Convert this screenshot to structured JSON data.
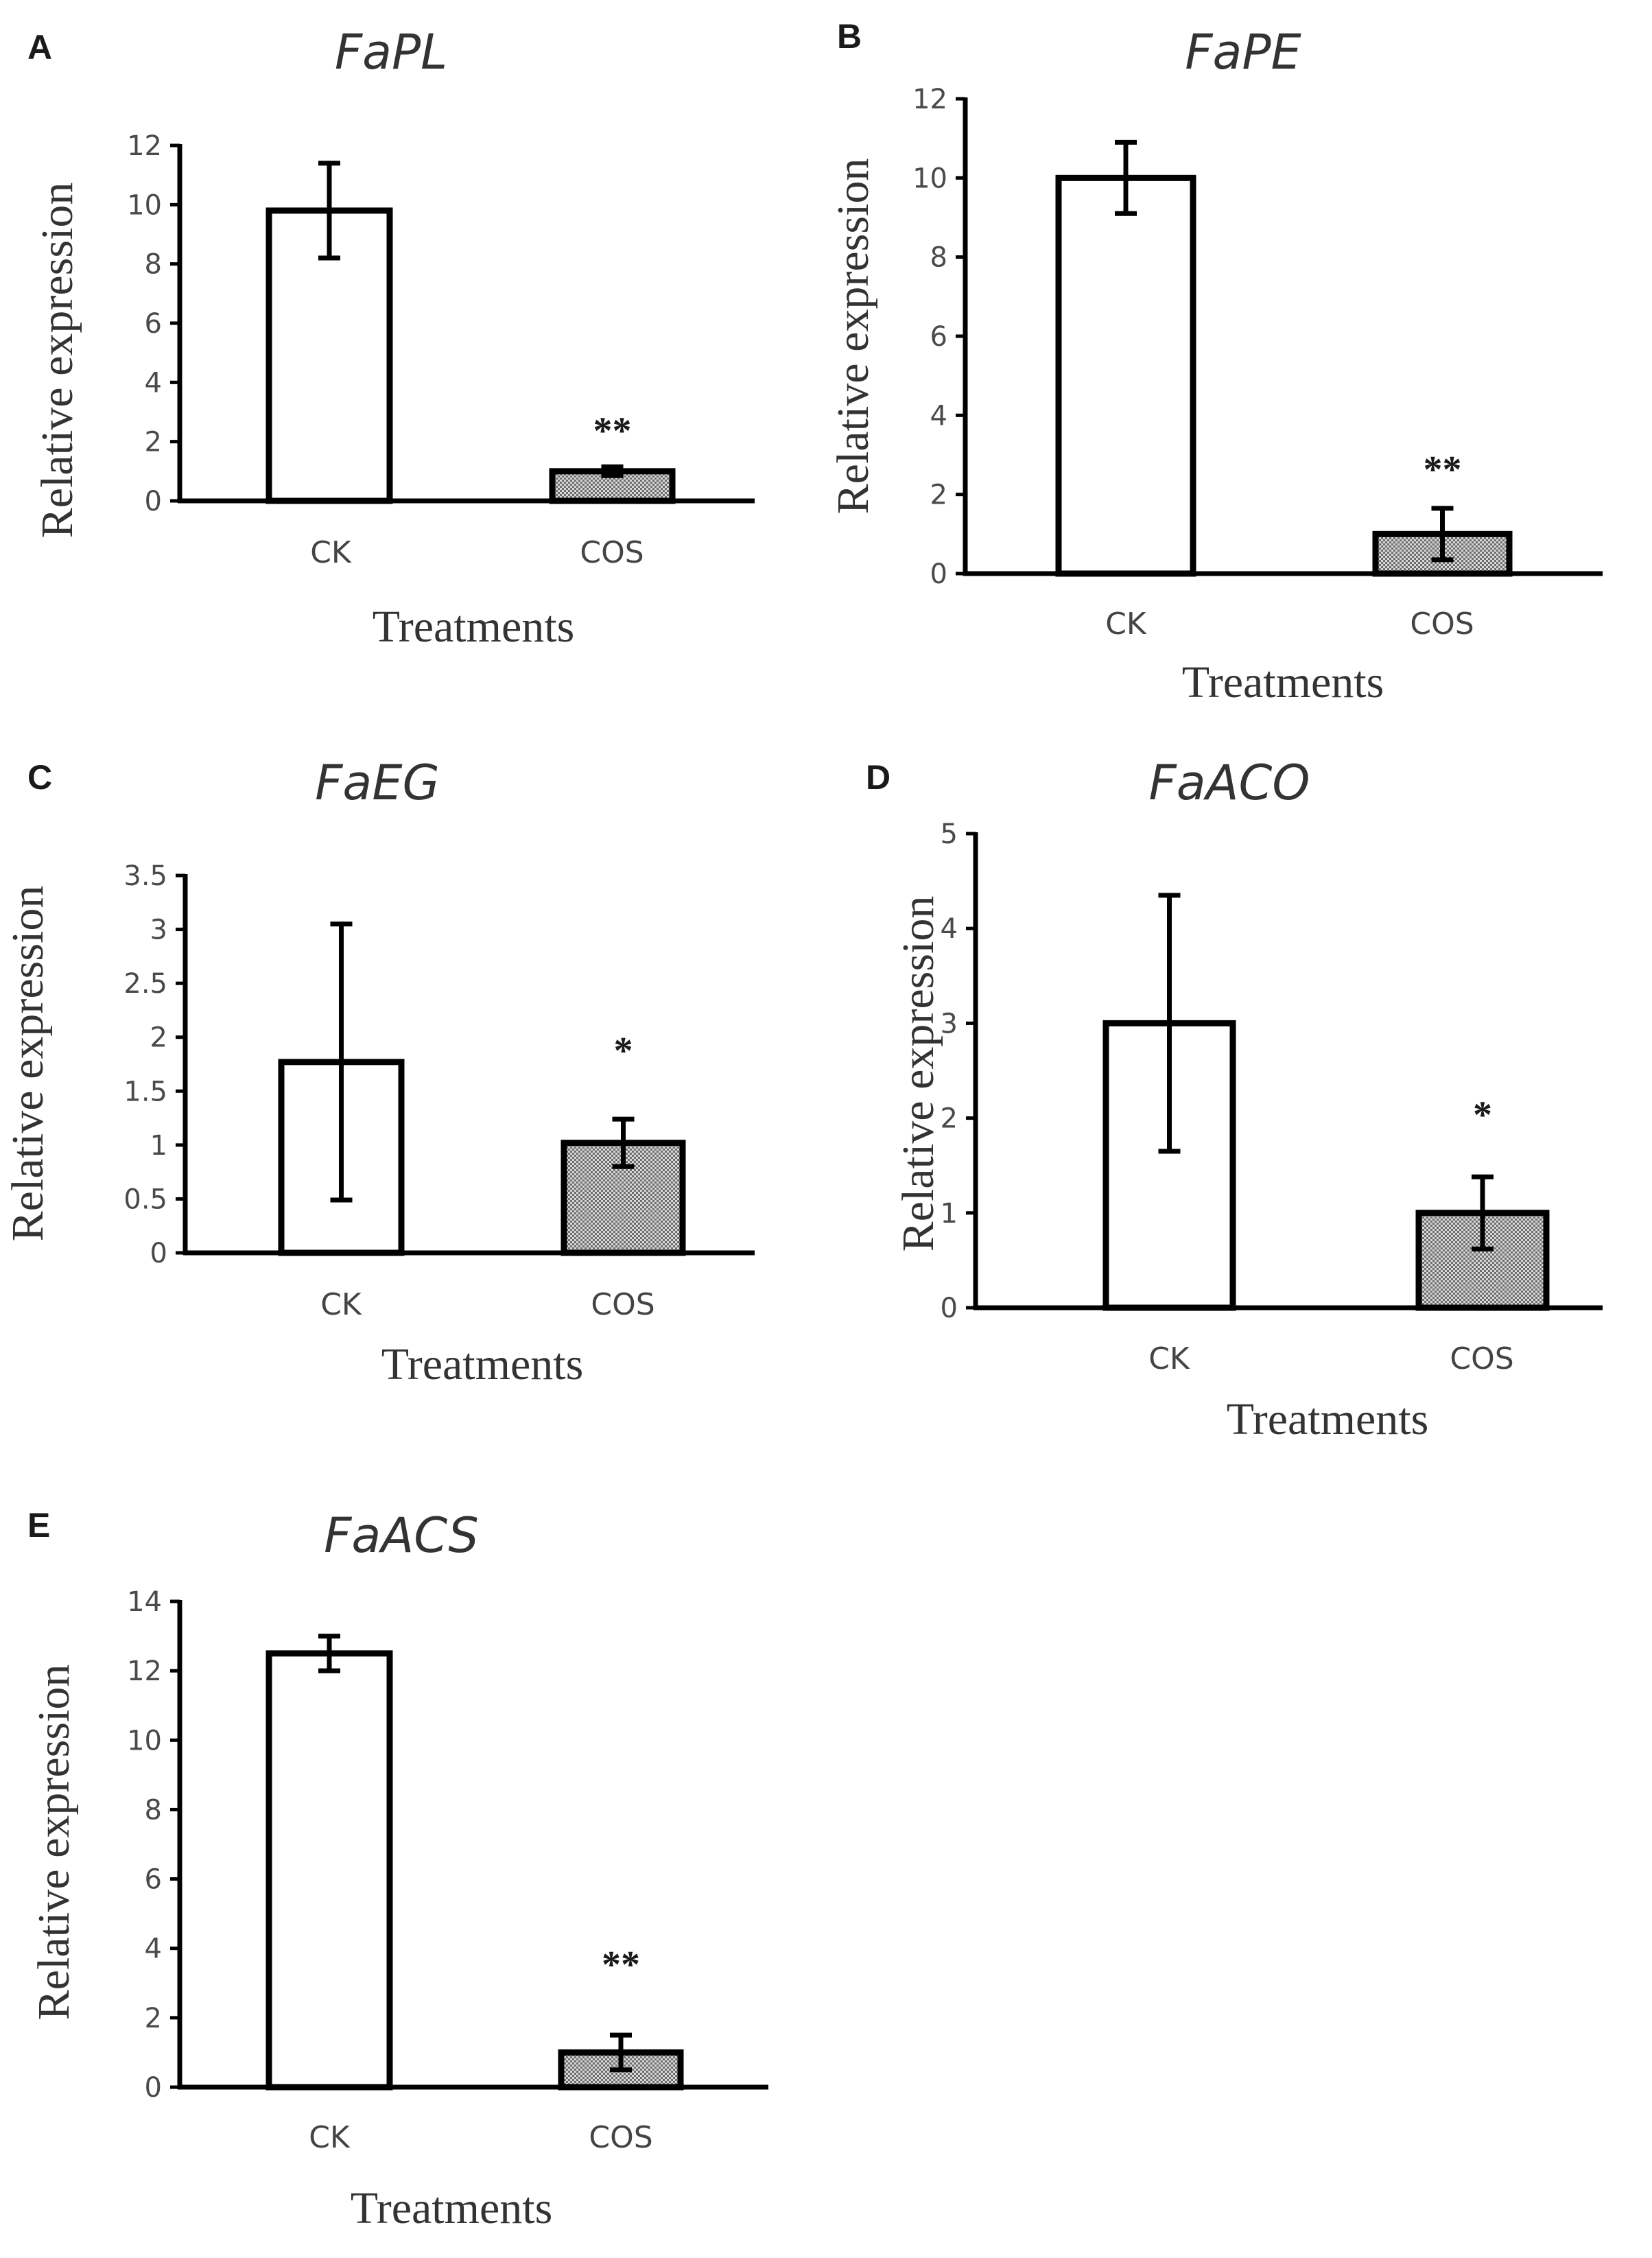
{
  "chart_data": [
    {
      "type": "bar",
      "panel": "A",
      "title": "FaPL",
      "categories": [
        "CK",
        "COS"
      ],
      "values": [
        9.8,
        1.0
      ],
      "errors": [
        1.6,
        0.15
      ],
      "significance": [
        "",
        "**"
      ],
      "xlabel": "Treatments",
      "ylabel": "Relative expression",
      "ylim": [
        0,
        12
      ],
      "yticks": [
        0,
        2,
        4,
        6,
        8,
        10,
        12
      ],
      "ytick_labels": [
        "0",
        "2",
        "4",
        "6",
        "8",
        "10",
        "12"
      ]
    },
    {
      "type": "bar",
      "panel": "B",
      "title": "FaPE",
      "categories": [
        "CK",
        "COS"
      ],
      "values": [
        10.0,
        1.0
      ],
      "errors": [
        0.9,
        0.65
      ],
      "significance": [
        "",
        "**"
      ],
      "xlabel": "Treatments",
      "ylabel": "Relative expression",
      "ylim": [
        0,
        12
      ],
      "yticks": [
        0,
        2,
        4,
        6,
        8,
        10,
        12
      ],
      "ytick_labels": [
        "0",
        "2",
        "4",
        "6",
        "8",
        "10",
        "12"
      ]
    },
    {
      "type": "bar",
      "panel": "C",
      "title": "FaEG",
      "categories": [
        "CK",
        "COS"
      ],
      "values": [
        1.77,
        1.02
      ],
      "errors": [
        1.28,
        0.22
      ],
      "significance": [
        "",
        "*"
      ],
      "xlabel": "Treatments",
      "ylabel": "Relative expression",
      "ylim": [
        0,
        3.5
      ],
      "yticks": [
        0,
        0.5,
        1,
        1.5,
        2,
        2.5,
        3,
        3.5
      ],
      "ytick_labels": [
        "0",
        "0.5",
        "1",
        "1.5",
        "2",
        "2.5",
        "3",
        "3.5"
      ]
    },
    {
      "type": "bar",
      "panel": "D",
      "title": "FaACO",
      "categories": [
        "CK",
        "COS"
      ],
      "values": [
        3.0,
        1.0
      ],
      "errors": [
        1.35,
        0.38
      ],
      "significance": [
        "",
        "*"
      ],
      "xlabel": "Treatments",
      "ylabel": "Relative expression",
      "ylim": [
        0,
        5
      ],
      "yticks": [
        0,
        1,
        2,
        3,
        4,
        5
      ],
      "ytick_labels": [
        "0",
        "1",
        "2",
        "3",
        "4",
        "5"
      ]
    },
    {
      "type": "bar",
      "panel": "E",
      "title": "FaACS",
      "categories": [
        "CK",
        "COS"
      ],
      "values": [
        12.5,
        1.0
      ],
      "errors": [
        0.5,
        0.5
      ],
      "significance": [
        "",
        "**"
      ],
      "xlabel": "Treatments",
      "ylabel": "Relative expression",
      "ylim": [
        0,
        14
      ],
      "yticks": [
        0,
        2,
        4,
        6,
        8,
        10,
        12,
        14
      ],
      "ytick_labels": [
        "0",
        "2",
        "4",
        "6",
        "8",
        "10",
        "12",
        "14"
      ]
    }
  ],
  "colors": {
    "ck_fill": "#ffffff",
    "cos_fill": "#9a9a9a",
    "stroke": "#000000"
  }
}
